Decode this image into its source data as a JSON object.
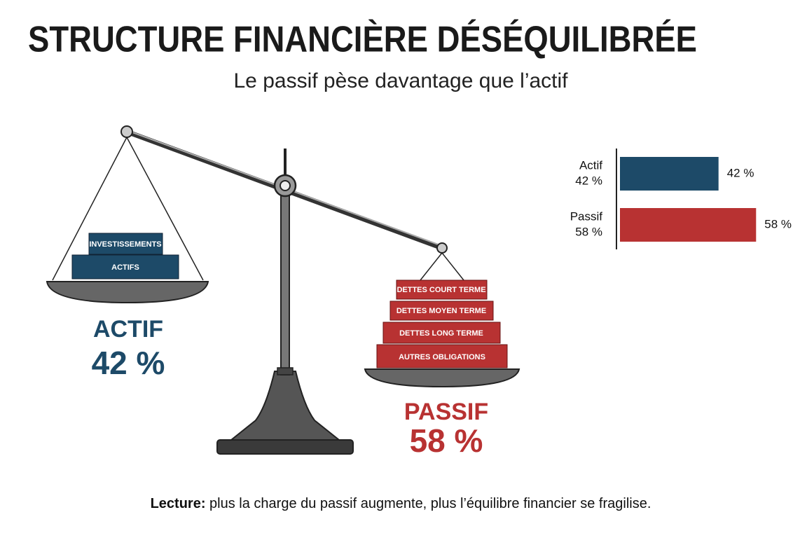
{
  "chart_data": {
    "type": "bar",
    "orientation": "horizontal",
    "title": "STRUCTURE FINANCIÈRE DÉSÉQUILIBRÉE",
    "subtitle": "Le passif pèse davantage que l’actif",
    "categories": [
      "Actif",
      "Passif"
    ],
    "values": [
      42,
      58
    ],
    "value_labels": [
      "42 %",
      "58 %"
    ],
    "colors": [
      "#1d4a68",
      "#b83232"
    ]
  },
  "illustration": {
    "left_label": "ACTIF",
    "right_label": "PASSIF",
    "left_blocks": [
      "INVESTISSEMENTS",
      "ACTIFS"
    ],
    "right_blocks": [
      "DETTES COURT TERME",
      "DETTES MOYEN TERME",
      "DETTES LONG TERME",
      "AUTRES OBLIGATIONS"
    ]
  },
  "note": {
    "lead": "Lecture:",
    "text": "plus la charge du passif augmente, plus l’équilibre financier se fragilise."
  }
}
